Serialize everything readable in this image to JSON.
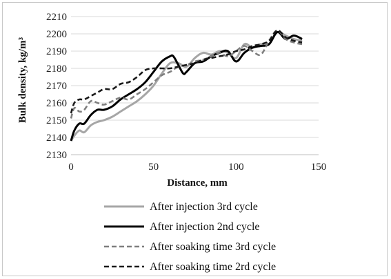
{
  "chart_data": {
    "type": "line",
    "xlabel": "Distance, mm",
    "ylabel": "Bulk density, kg/m³",
    "xlim": [
      0,
      150
    ],
    "ylim": [
      2130,
      2210
    ],
    "x_ticks": [
      0,
      50,
      100,
      150
    ],
    "y_ticks": [
      2130,
      2140,
      2150,
      2160,
      2170,
      2180,
      2190,
      2200,
      2210
    ],
    "grid": "horizontal",
    "legend_position": "bottom",
    "series": [
      {
        "name": "After injection 3rd cycle",
        "color": "#a6a6a6",
        "dash": "solid",
        "x": [
          0,
          2,
          5,
          8,
          12,
          16,
          20,
          25,
          30,
          35,
          40,
          45,
          50,
          55,
          60,
          65,
          70,
          75,
          80,
          85,
          90,
          95,
          100,
          105,
          110,
          115,
          120,
          125,
          130,
          135,
          140
        ],
        "y": [
          2138,
          2141,
          2144,
          2143,
          2147,
          2149,
          2150,
          2152,
          2155,
          2158,
          2161,
          2165,
          2170,
          2177,
          2183,
          2183,
          2181,
          2186,
          2189,
          2188,
          2190,
          2189,
          2186,
          2194,
          2192,
          2194,
          2194,
          2201,
          2199,
          2197,
          2196
        ]
      },
      {
        "name": "After injection 2nd cycle",
        "color": "#000000",
        "dash": "solid",
        "x": [
          0,
          2,
          5,
          8,
          12,
          16,
          20,
          25,
          30,
          35,
          40,
          45,
          50,
          55,
          60,
          62,
          65,
          68,
          70,
          75,
          80,
          85,
          90,
          95,
          100,
          105,
          110,
          115,
          120,
          125,
          130,
          135,
          140
        ],
        "y": [
          2138,
          2144,
          2148,
          2148,
          2153,
          2156,
          2156,
          2158,
          2162,
          2165,
          2168,
          2172,
          2178,
          2184,
          2187,
          2187,
          2182,
          2177,
          2178,
          2183,
          2184,
          2187,
          2189,
          2190,
          2184,
          2189,
          2192,
          2193,
          2194,
          2201,
          2197,
          2199,
          2197
        ]
      },
      {
        "name": "After soaking time 3rd cycle",
        "color": "#7f7f7f",
        "dash": "dash",
        "x": [
          0,
          2,
          5,
          8,
          12,
          16,
          20,
          25,
          30,
          35,
          40,
          45,
          50,
          55,
          60,
          65,
          70,
          75,
          80,
          85,
          90,
          95,
          100,
          105,
          110,
          115,
          120,
          125,
          130,
          135,
          140
        ],
        "y": [
          2151,
          2157,
          2155,
          2156,
          2161,
          2160,
          2159,
          2161,
          2163,
          2162,
          2165,
          2168,
          2172,
          2176,
          2178,
          2181,
          2182,
          2184,
          2185,
          2187,
          2189,
          2187,
          2190,
          2193,
          2190,
          2188,
          2196,
          2202,
          2197,
          2195,
          2194
        ]
      },
      {
        "name": "After soaking time 2rd cycle",
        "color": "#1a1a1a",
        "dash": "dash",
        "x": [
          0,
          2,
          5,
          8,
          12,
          16,
          20,
          25,
          30,
          35,
          40,
          45,
          50,
          55,
          60,
          65,
          70,
          75,
          80,
          85,
          90,
          95,
          100,
          105,
          110,
          115,
          120,
          125,
          130,
          135,
          140
        ],
        "y": [
          2154,
          2160,
          2162,
          2162,
          2164,
          2166,
          2168,
          2168,
          2171,
          2172,
          2175,
          2179,
          2180,
          2180,
          2180,
          2181,
          2182,
          2183,
          2185,
          2186,
          2187,
          2188,
          2190,
          2191,
          2193,
          2194,
          2196,
          2202,
          2198,
          2196,
          2195
        ]
      }
    ]
  }
}
